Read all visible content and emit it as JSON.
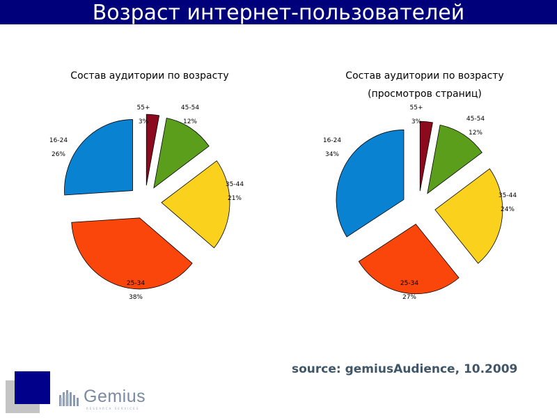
{
  "header": {
    "title": "Возраст интернет-пользователей"
  },
  "charts": {
    "left_title": "Состав аудитории по возрасту",
    "right_title_line1": "Состав аудитории по возрасту",
    "right_title_line2": "(просмотров страниц)"
  },
  "colors": {
    "title_bar": "#00007a",
    "slice_55plus": "#8b0a1e",
    "slice_45_54": "#5a9e1c",
    "slice_35_44": "#fad21e",
    "slice_25_34": "#fa460a",
    "slice_16_24": "#0a82d2"
  },
  "chart_data": [
    {
      "type": "pie",
      "title": "Состав аудитории по возрасту",
      "categories": [
        "55+",
        "45-54",
        "35-44",
        "25-34",
        "16-24"
      ],
      "values": [
        3,
        12,
        21,
        38,
        26
      ],
      "value_labels": [
        "3%",
        "12%",
        "21%",
        "38%",
        "26%"
      ],
      "exploded": true
    },
    {
      "type": "pie",
      "title": "Состав аудитории по возрасту (просмотров страниц)",
      "categories": [
        "55+",
        "45-54",
        "35-44",
        "25-34",
        "16-24"
      ],
      "values": [
        3,
        12,
        24,
        27,
        34
      ],
      "value_labels": [
        "3%",
        "12%",
        "24%",
        "27%",
        "34%"
      ],
      "exploded": true
    }
  ],
  "footer": {
    "source": "source: gemiusAudience, 10.2009",
    "logo_text": "Gemius",
    "logo_subtext": "RESEARCH   SERVICES"
  }
}
